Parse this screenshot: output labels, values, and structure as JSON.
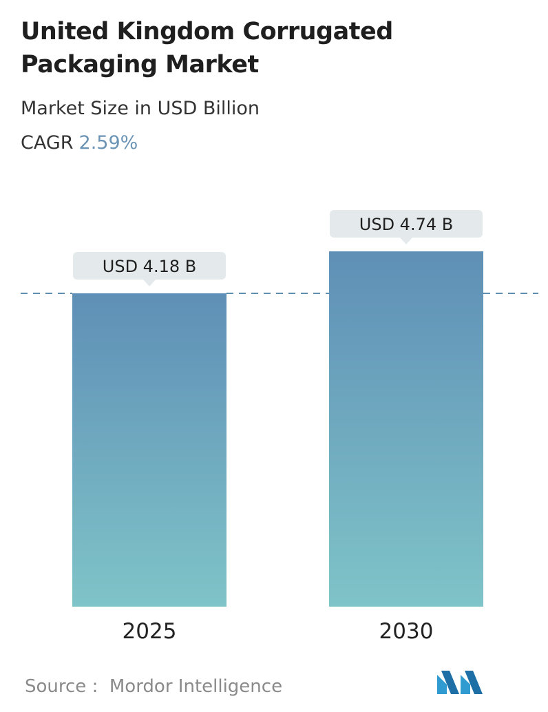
{
  "header": {
    "title": "United Kingdom Corrugated Packaging Market",
    "subtitle": "Market Size in USD Billion",
    "cagr_label": "CAGR",
    "cagr_value": "2.59%"
  },
  "chart_data": {
    "type": "bar",
    "categories": [
      "2025",
      "2030"
    ],
    "values": [
      4.18,
      4.74
    ],
    "data_labels": [
      "USD 4.18 B",
      "USD 4.74 B"
    ],
    "title": "United Kingdom Corrugated Packaging Market",
    "subtitle": "Market Size in USD Billion",
    "xlabel": "",
    "ylabel": "",
    "grid": false,
    "reference_line": "dashed line at the 2025 value",
    "colors": {
      "bar_top": "#5f8fb6",
      "bar_bottom": "#7fc4c8",
      "label_bg": "#e4eaeb",
      "dash": "#5f8fb0"
    }
  },
  "footer": {
    "source_label": "Source :",
    "source_name": "Mordor Intelligence",
    "logo": "mordor-intelligence-logo"
  }
}
